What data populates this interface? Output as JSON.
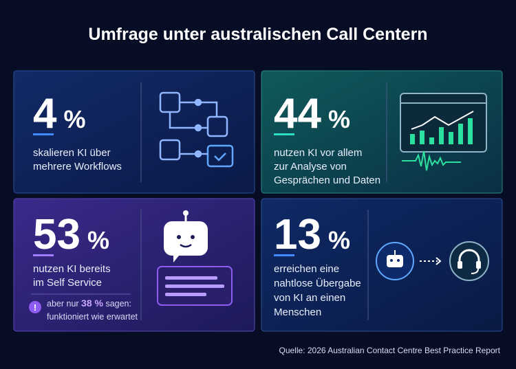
{
  "header": {
    "title": "Umfrage unter australischen Call Centern"
  },
  "cards": [
    {
      "value": "4",
      "unit": "%",
      "lines": [
        "skalieren KI über",
        "mehrere Workflows"
      ]
    },
    {
      "value": "44",
      "unit": "%",
      "lines": [
        "nutzen KI vor allem",
        "zur Analyse von",
        "Gesprächen und Daten"
      ]
    },
    {
      "value": "53",
      "unit": "%",
      "lines": [
        "nutzen KI bereits",
        "im Self Service"
      ],
      "note": {
        "prefix": "aber nur",
        "highlight": "38 %",
        "suffix": "sagen:",
        "line2": "funktioniert wie erwartet"
      }
    },
    {
      "value": "13",
      "unit": "%",
      "lines": [
        "erreichen eine",
        "nahtlose Übergabe",
        "von KI an einen",
        "Menschen"
      ]
    }
  ],
  "footer": {
    "source": "Quelle: 2026 Australian Contact Centre Best Practice Report"
  }
}
